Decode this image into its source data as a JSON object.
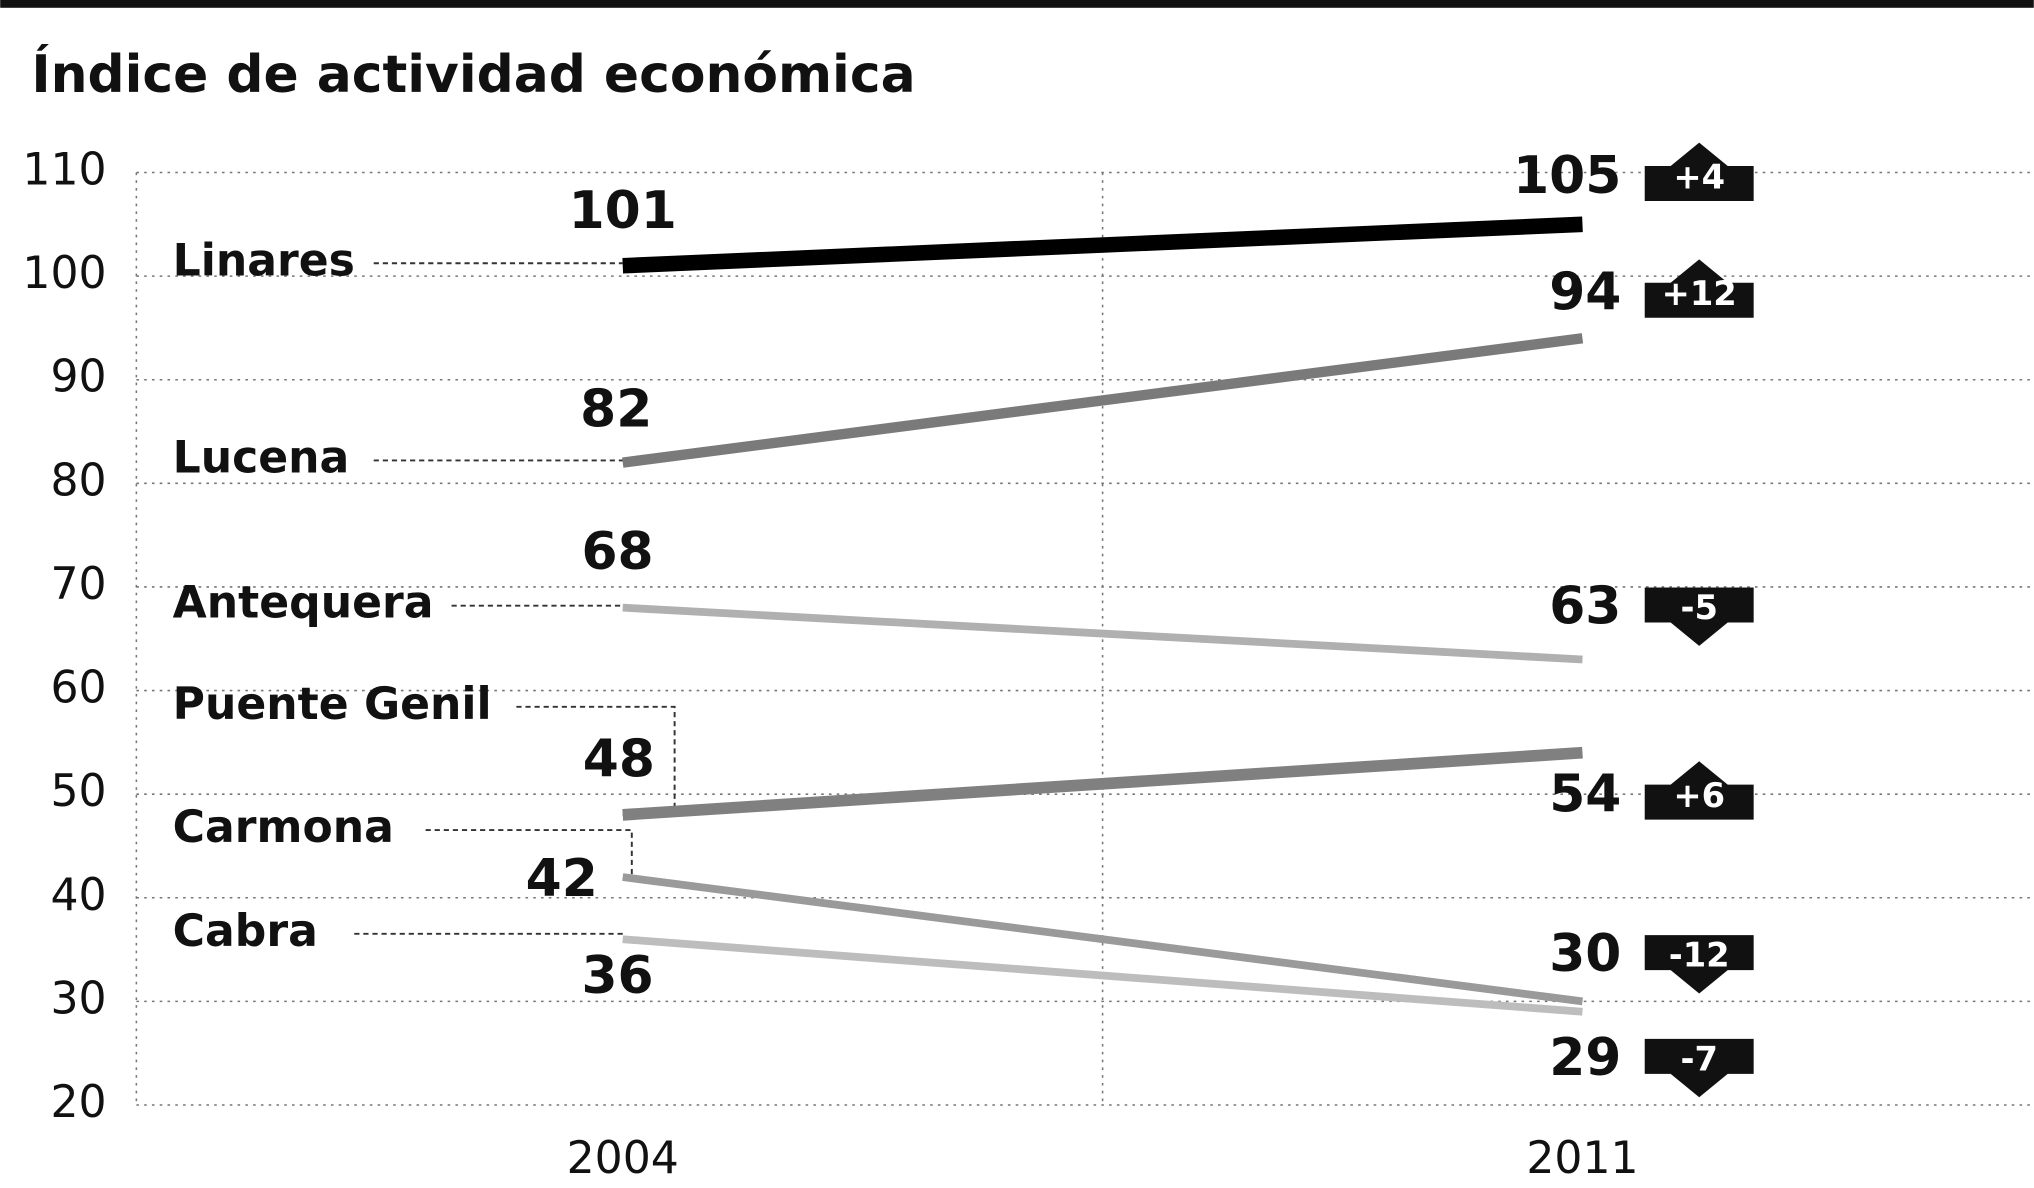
{
  "chart_data": {
    "type": "slope",
    "title": "Índice de actividad económica",
    "categories": [
      "2004",
      "2011"
    ],
    "ylim": [
      20,
      110
    ],
    "yticks": [
      20,
      30,
      40,
      50,
      60,
      70,
      80,
      90,
      100,
      110
    ],
    "grid": true,
    "series": [
      {
        "name": "Linares",
        "color": "#000000",
        "values": [
          101,
          105
        ],
        "change": "+4"
      },
      {
        "name": "Lucena",
        "color": "#7a7a7a",
        "values": [
          82,
          94
        ],
        "change": "+12"
      },
      {
        "name": "Antequera",
        "color": "#b0b0b0",
        "values": [
          68,
          63
        ],
        "change": "-5"
      },
      {
        "name": "Puente Genil",
        "color": "#808080",
        "values": [
          48,
          54
        ],
        "change": "+6"
      },
      {
        "name": "Carmona",
        "color": "#9a9a9a",
        "values": [
          42,
          30
        ],
        "change": "-12"
      },
      {
        "name": "Cabra",
        "color": "#bdbdbd",
        "values": [
          36,
          29
        ],
        "change": "-7"
      }
    ]
  }
}
